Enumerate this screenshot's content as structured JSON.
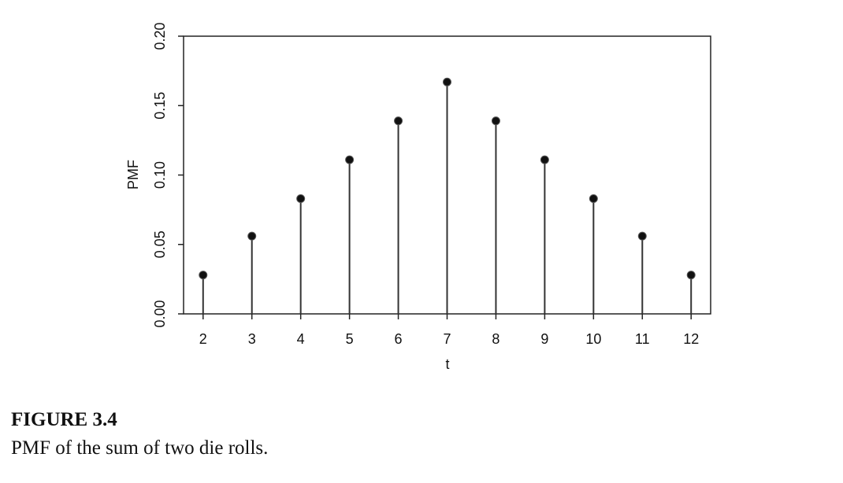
{
  "chart_data": {
    "type": "stem",
    "x_label": "t",
    "y_label": "PMF",
    "x": [
      2,
      3,
      4,
      5,
      6,
      7,
      8,
      9,
      10,
      11,
      12
    ],
    "values": [
      0.028,
      0.056,
      0.083,
      0.111,
      0.139,
      0.167,
      0.139,
      0.111,
      0.083,
      0.056,
      0.028
    ],
    "color": "#111111",
    "xlim": [
      1.6,
      12.4
    ],
    "xticks": [
      2,
      3,
      4,
      5,
      6,
      7,
      8,
      9,
      10,
      11,
      12
    ],
    "ylim": [
      0,
      0.2
    ],
    "yticks": [
      {
        "value": 0,
        "label": "0.00"
      },
      {
        "value": 0.05,
        "label": "0.05"
      },
      {
        "value": 0.1,
        "label": "0.10"
      },
      {
        "value": 0.15,
        "label": "0.15"
      },
      {
        "value": 0.2,
        "label": "0.20"
      }
    ]
  },
  "caption": {
    "label": "FIGURE 3.4",
    "text": "PMF of the sum of two die rolls."
  }
}
